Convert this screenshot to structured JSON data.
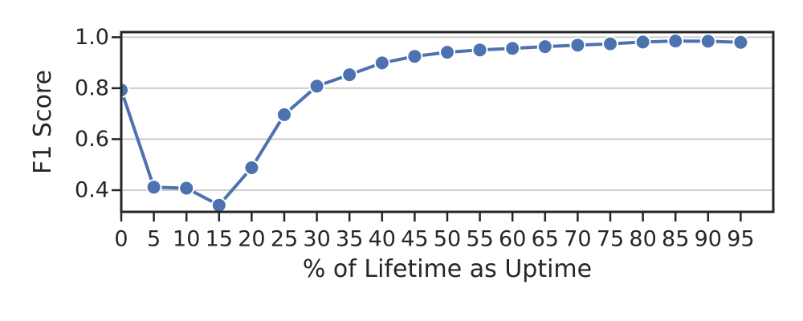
{
  "chart_data": {
    "type": "line",
    "title": "",
    "xlabel": "% of Lifetime as Uptime",
    "ylabel": "F1 Score",
    "x": [
      0,
      5,
      10,
      15,
      20,
      25,
      30,
      35,
      40,
      45,
      50,
      55,
      60,
      65,
      70,
      75,
      80,
      85,
      90,
      95
    ],
    "series": [
      {
        "name": "F1 Score",
        "values": [
          0.793,
          0.412,
          0.408,
          0.341,
          0.488,
          0.696,
          0.808,
          0.853,
          0.899,
          0.925,
          0.941,
          0.95,
          0.956,
          0.963,
          0.969,
          0.974,
          0.981,
          0.985,
          0.984,
          0.98
        ]
      }
    ],
    "xlim": [
      0,
      100
    ],
    "ylim": [
      0.315,
      1.02
    ],
    "xticks": {
      "values": [
        0,
        5,
        10,
        15,
        20,
        25,
        30,
        35,
        40,
        45,
        50,
        55,
        60,
        65,
        70,
        75,
        80,
        85,
        90,
        95
      ],
      "labels": [
        "0",
        "5",
        "10",
        "15",
        "20",
        "25",
        "30",
        "35",
        "40",
        "45",
        "50",
        "55",
        "60",
        "65",
        "70",
        "75",
        "80",
        "85",
        "90",
        "95"
      ]
    },
    "yticks": {
      "values": [
        0.4,
        0.6,
        0.8,
        1.0
      ],
      "labels": [
        "0.4",
        "0.6",
        "0.8",
        "1.0"
      ]
    },
    "grid": {
      "horizontal": true,
      "vertical": false
    },
    "legend": "none",
    "marker": "circle",
    "colors": {
      "line": "#4C72B0",
      "marker_fill": "#4C72B0",
      "marker_edge": "#ffffff",
      "grid": "#cdcdcd",
      "spine": "#262626",
      "text": "#262626",
      "background": "#ffffff"
    }
  }
}
